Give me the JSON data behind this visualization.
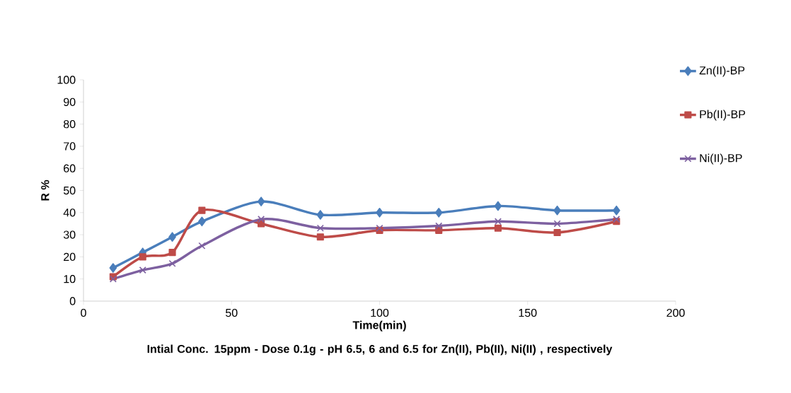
{
  "chart_data": {
    "type": "line",
    "xlabel": "Time(min)",
    "ylabel": "R %",
    "annotations": [
      "Intial Conc. 15ppm - Dose 0.1g - pH 6.5, 6 and 6.5  for Zn(II), Pb(II), Ni(II) , respectively"
    ],
    "x": [
      10,
      20,
      30,
      40,
      60,
      80,
      100,
      120,
      140,
      160,
      180
    ],
    "series": [
      {
        "name": "Zn(II)-BP",
        "color": "#4a7ebb",
        "marker": "diamond",
        "values": [
          15,
          22,
          29,
          36,
          45,
          39,
          40,
          40,
          43,
          41,
          41
        ]
      },
      {
        "name": "Pb(II)-BP",
        "color": "#be4b48",
        "marker": "square",
        "values": [
          11,
          20,
          22,
          41,
          35,
          29,
          32,
          32,
          33,
          31,
          36
        ]
      },
      {
        "name": "Ni(II)-BP",
        "color": "#7d60a0",
        "marker": "cross",
        "values": [
          10,
          14,
          17,
          25,
          37,
          33,
          33,
          34,
          36,
          35,
          37
        ]
      }
    ],
    "xlim": [
      0,
      200
    ],
    "xticks": [
      0,
      50,
      100,
      150,
      200
    ],
    "ylim": [
      0,
      100
    ],
    "yticks": [
      0,
      10,
      20,
      30,
      40,
      50,
      60,
      70,
      80,
      90,
      100
    ],
    "grid": false,
    "legend": "right",
    "line_style": "solid"
  }
}
